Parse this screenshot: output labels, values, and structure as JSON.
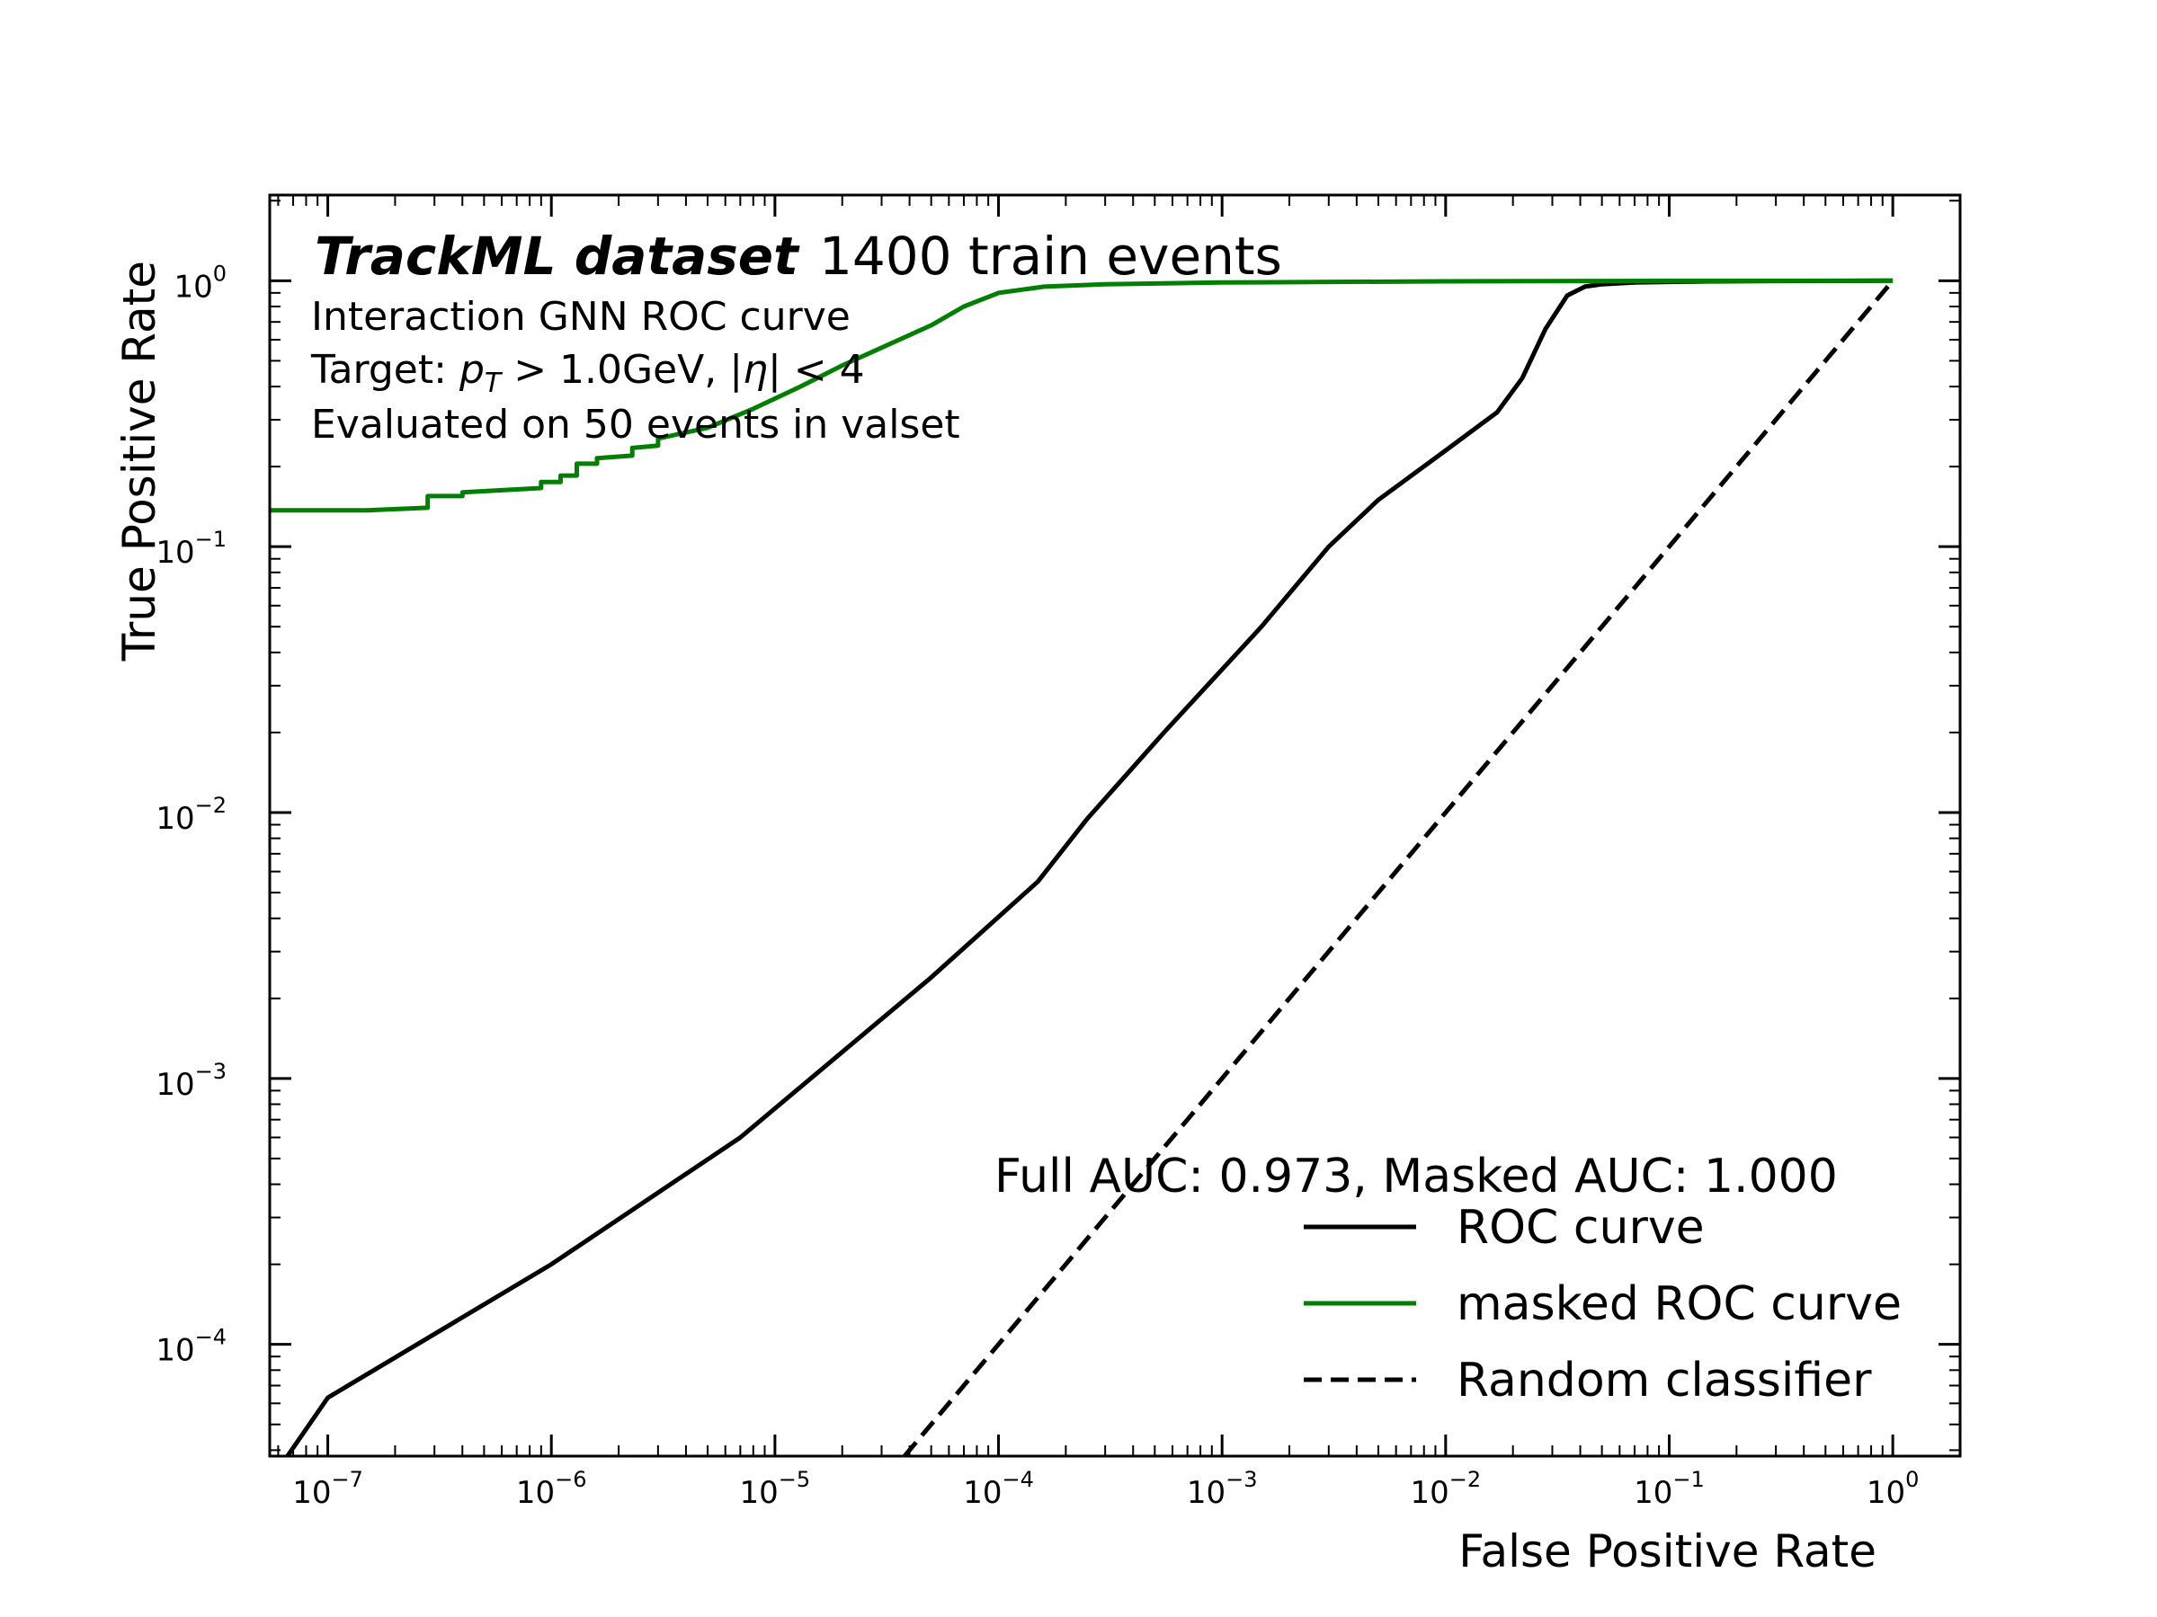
{
  "chart_data": {
    "type": "line",
    "title": "TrackML dataset",
    "title_suffix": "1400 train events",
    "annotations": [
      "Interaction GNN ROC curve",
      "Target: p_T > 1.0GeV, |η| < 4",
      "Evaluated on 50 events in valset"
    ],
    "auc_text": "Full AUC: 0.973, Masked AUC:  1.000",
    "xlabel": "False Positive Rate",
    "ylabel": "True Positive Rate",
    "xscale": "log",
    "yscale": "log",
    "xlim": [
      5.5e-08,
      2.0
    ],
    "ylim": [
      3.8e-05,
      2.1
    ],
    "x_ticks": [
      {
        "base": "10",
        "exp": "−7",
        "value": 1e-07
      },
      {
        "base": "10",
        "exp": "−6",
        "value": 1e-06
      },
      {
        "base": "10",
        "exp": "−5",
        "value": 1e-05
      },
      {
        "base": "10",
        "exp": "−4",
        "value": 0.0001
      },
      {
        "base": "10",
        "exp": "−3",
        "value": 0.001
      },
      {
        "base": "10",
        "exp": "−2",
        "value": 0.01
      },
      {
        "base": "10",
        "exp": "−1",
        "value": 0.1
      },
      {
        "base": "10",
        "exp": "0",
        "value": 1
      }
    ],
    "y_ticks": [
      {
        "base": "10",
        "exp": "−4",
        "value": 0.0001
      },
      {
        "base": "10",
        "exp": "−3",
        "value": 0.001
      },
      {
        "base": "10",
        "exp": "−2",
        "value": 0.01
      },
      {
        "base": "10",
        "exp": "−1",
        "value": 0.1
      },
      {
        "base": "10",
        "exp": "0",
        "value": 1
      }
    ],
    "legend_position": "lower-right",
    "grid": false,
    "series": [
      {
        "name": "ROC curve",
        "color": "#000000",
        "style": "solid",
        "x": [
          6.6e-08,
          1e-07,
          1e-06,
          7e-06,
          5e-05,
          0.00015,
          0.00025,
          0.00055,
          0.0015,
          0.003,
          0.005,
          0.01,
          0.017,
          0.022,
          0.028,
          0.035,
          0.042,
          0.05,
          0.07,
          0.1,
          0.15,
          0.3,
          0.6,
          1.0
        ],
        "y": [
          3.8e-05,
          6.3e-05,
          0.0002,
          0.0006,
          0.0024,
          0.0055,
          0.0095,
          0.02,
          0.05,
          0.1,
          0.15,
          0.23,
          0.32,
          0.43,
          0.66,
          0.88,
          0.95,
          0.97,
          0.985,
          0.99,
          0.995,
          0.998,
          0.999,
          1.0
        ]
      },
      {
        "name": "masked ROC curve",
        "color": "#007f00",
        "style": "step",
        "x": [
          5.5e-08,
          1.5e-07,
          2.8e-07,
          2.8e-07,
          4e-07,
          4e-07,
          9e-07,
          9e-07,
          1.1e-06,
          1.1e-06,
          1.3e-06,
          1.3e-06,
          1.6e-06,
          1.6e-06,
          2.3e-06,
          2.3e-06,
          3e-06,
          3e-06,
          5e-06,
          8e-06,
          1.3e-05,
          2e-05,
          3e-05,
          5e-05,
          7e-05,
          0.0001,
          0.00016,
          0.0003,
          0.001,
          0.01,
          0.1,
          1.0
        ],
        "y": [
          0.137,
          0.137,
          0.14,
          0.155,
          0.155,
          0.16,
          0.166,
          0.175,
          0.175,
          0.185,
          0.185,
          0.205,
          0.205,
          0.215,
          0.22,
          0.235,
          0.24,
          0.255,
          0.28,
          0.33,
          0.4,
          0.48,
          0.56,
          0.68,
          0.8,
          0.9,
          0.95,
          0.97,
          0.985,
          0.995,
          0.999,
          1.0
        ]
      },
      {
        "name": "Random classifier",
        "color": "#000000",
        "style": "dashed",
        "x": [
          3.8e-05,
          1.0
        ],
        "y": [
          3.8e-05,
          1.0
        ]
      }
    ]
  }
}
